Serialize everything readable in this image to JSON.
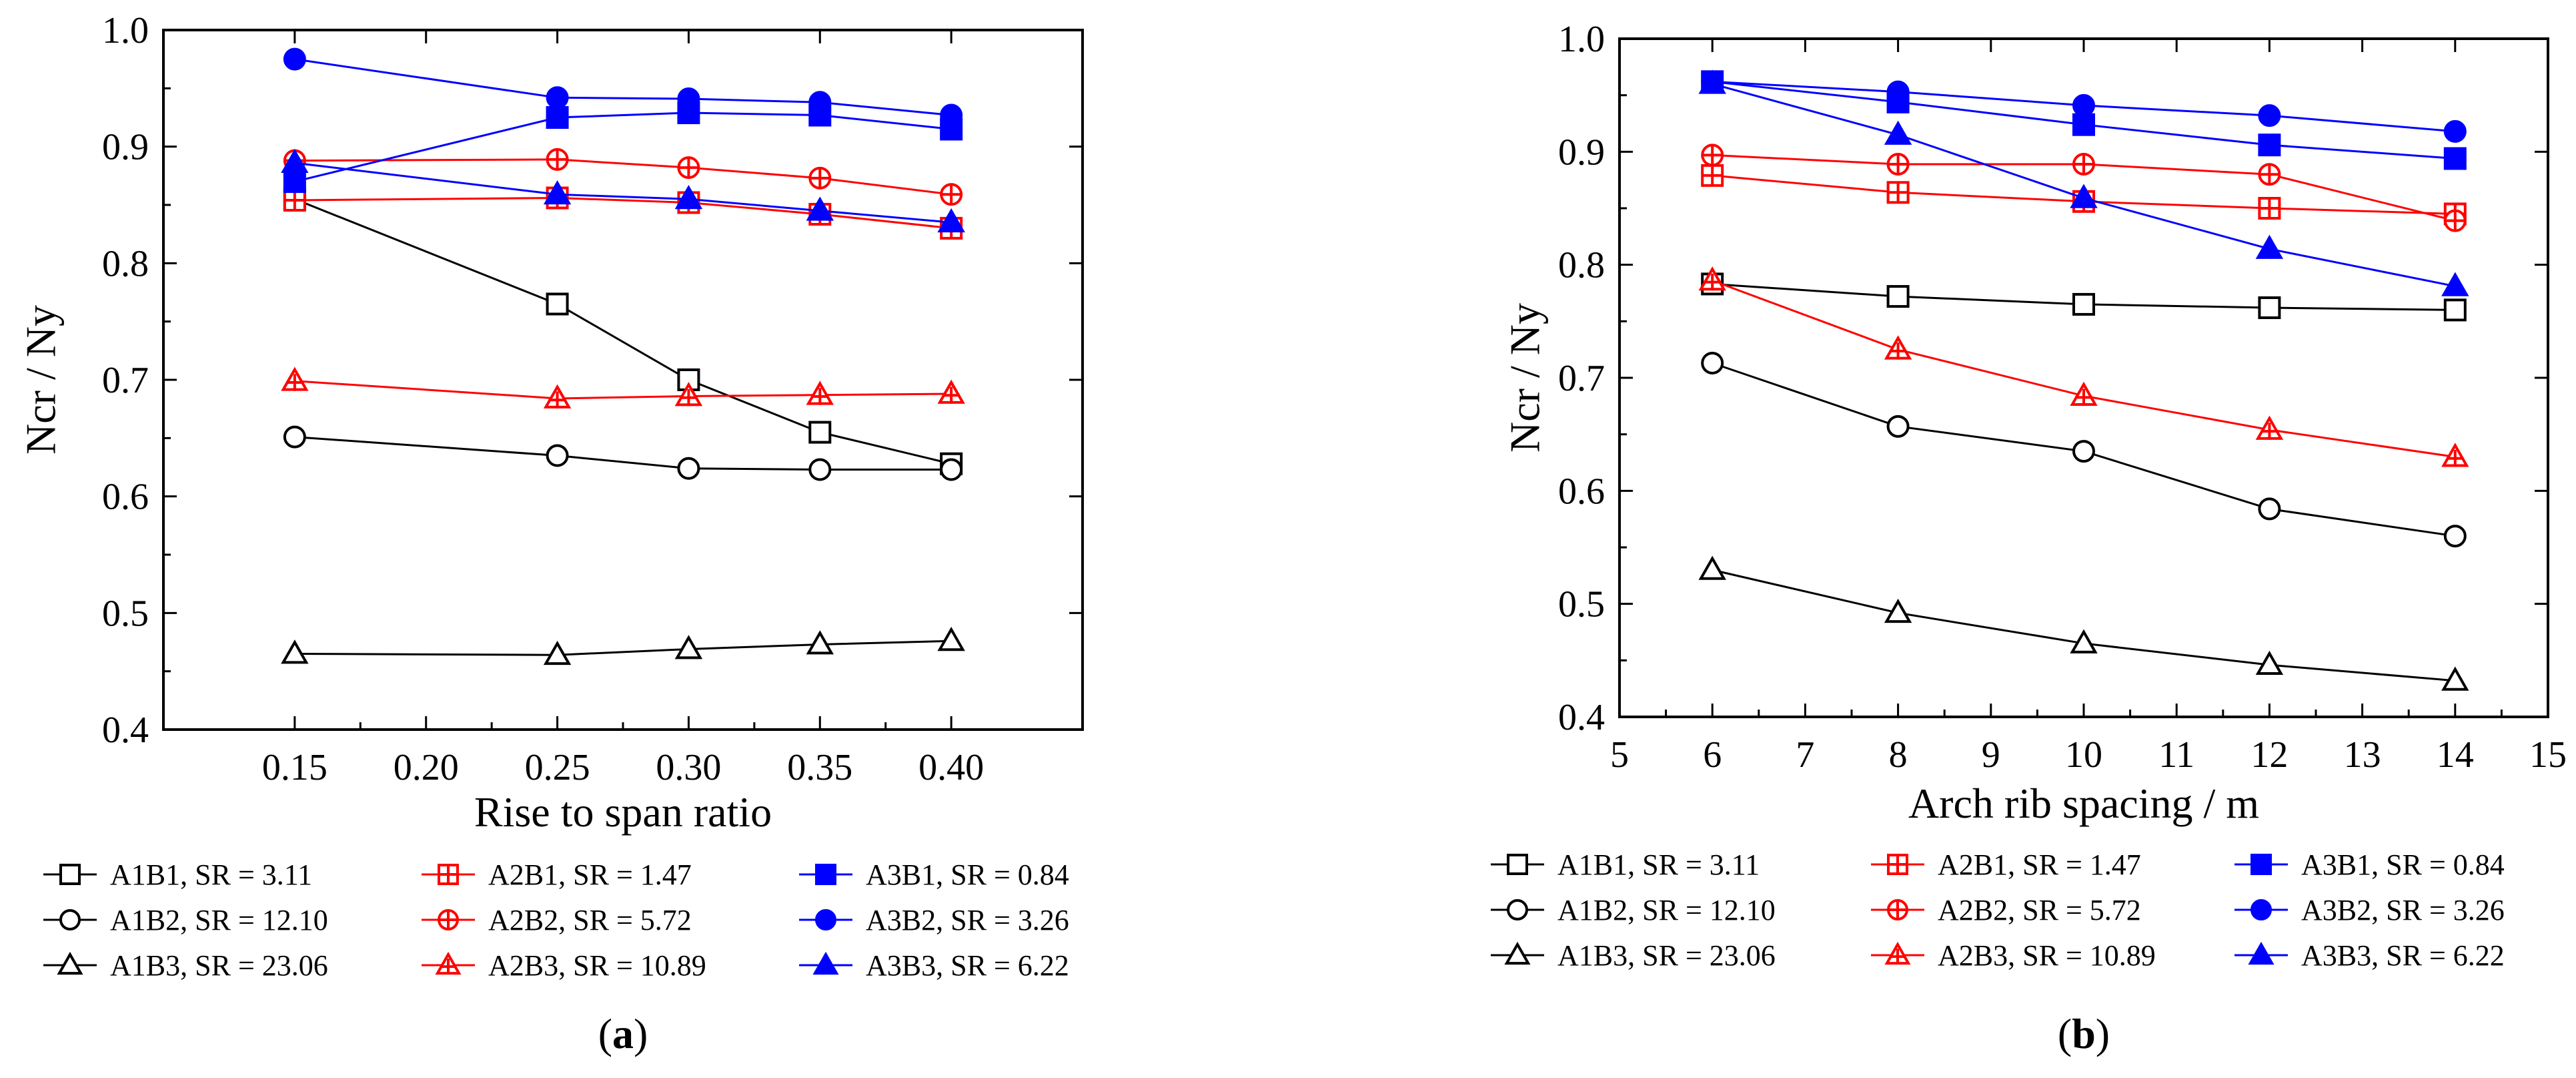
{
  "chart_data": [
    {
      "type": "line",
      "panel_label": "a",
      "xlabel": "Rise to span ratio",
      "ylabel": "Ncr / Ny",
      "xlim": [
        0.1,
        0.45
      ],
      "ylim": [
        0.4,
        1.0
      ],
      "xticks": [
        "0.15",
        "0.20",
        "0.25",
        "0.30",
        "0.35",
        "0.40"
      ],
      "yticks": [
        "0.4",
        "0.5",
        "0.6",
        "0.7",
        "0.8",
        "0.9",
        "1.0"
      ],
      "x": [
        0.15,
        0.25,
        0.3,
        0.35,
        0.4
      ],
      "series": [
        {
          "name": "A1B1, SR = 3.11",
          "color": "#000000",
          "marker": "square",
          "filled": false,
          "values": [
            0.855,
            0.765,
            0.7,
            0.655,
            0.628
          ]
        },
        {
          "name": "A1B2, SR = 12.10",
          "color": "#000000",
          "marker": "circle",
          "filled": false,
          "values": [
            0.651,
            0.635,
            0.624,
            0.623,
            0.623
          ]
        },
        {
          "name": "A1B3, SR = 23.06",
          "color": "#000000",
          "marker": "triangle",
          "filled": false,
          "values": [
            0.465,
            0.464,
            0.469,
            0.473,
            0.476
          ]
        },
        {
          "name": "A2B1, SR = 1.47",
          "color": "#ff0000",
          "marker": "square-cross",
          "filled": false,
          "values": [
            0.854,
            0.856,
            0.852,
            0.842,
            0.83
          ]
        },
        {
          "name": "A2B2, SR = 5.72",
          "color": "#ff0000",
          "marker": "circle-cross",
          "filled": false,
          "values": [
            0.888,
            0.889,
            0.882,
            0.873,
            0.859
          ]
        },
        {
          "name": "A2B3, SR = 10.89",
          "color": "#ff0000",
          "marker": "triangle-cross",
          "filled": false,
          "values": [
            0.699,
            0.684,
            0.686,
            0.687,
            0.688
          ]
        },
        {
          "name": "A3B1, SR = 0.84",
          "color": "#0000ff",
          "marker": "square",
          "filled": true,
          "values": [
            0.87,
            0.925,
            0.929,
            0.927,
            0.915
          ]
        },
        {
          "name": "A3B2, SR = 3.26",
          "color": "#0000ff",
          "marker": "circle",
          "filled": true,
          "values": [
            0.975,
            0.942,
            0.941,
            0.938,
            0.927
          ]
        },
        {
          "name": "A3B3, SR = 6.22",
          "color": "#0000ff",
          "marker": "triangle",
          "filled": true,
          "values": [
            0.886,
            0.859,
            0.855,
            0.845,
            0.835
          ]
        }
      ]
    },
    {
      "type": "line",
      "panel_label": "b",
      "xlabel": "Arch rib spacing / m",
      "ylabel": "Ncr / Ny",
      "xlim": [
        5,
        15
      ],
      "ylim": [
        0.4,
        1.0
      ],
      "xticks": [
        "5",
        "6",
        "7",
        "8",
        "9",
        "10",
        "11",
        "12",
        "13",
        "14",
        "15"
      ],
      "yticks": [
        "0.4",
        "0.5",
        "0.6",
        "0.7",
        "0.8",
        "0.9",
        "1.0"
      ],
      "x": [
        6,
        8,
        10,
        12,
        14
      ],
      "series": [
        {
          "name": "A1B1, SR = 3.11",
          "color": "#000000",
          "marker": "square",
          "filled": false,
          "values": [
            0.783,
            0.772,
            0.765,
            0.762,
            0.76
          ]
        },
        {
          "name": "A1B2, SR = 12.10",
          "color": "#000000",
          "marker": "circle",
          "filled": false,
          "values": [
            0.713,
            0.657,
            0.635,
            0.584,
            0.56
          ]
        },
        {
          "name": "A1B3, SR = 23.06",
          "color": "#000000",
          "marker": "triangle",
          "filled": false,
          "values": [
            0.53,
            0.492,
            0.465,
            0.446,
            0.432
          ]
        },
        {
          "name": "A2B1, SR = 1.47",
          "color": "#ff0000",
          "marker": "square-cross",
          "filled": false,
          "values": [
            0.879,
            0.864,
            0.856,
            0.85,
            0.845
          ]
        },
        {
          "name": "A2B2, SR = 5.72",
          "color": "#ff0000",
          "marker": "circle-cross",
          "filled": false,
          "values": [
            0.897,
            0.889,
            0.889,
            0.88,
            0.839
          ]
        },
        {
          "name": "A2B3, SR = 10.89",
          "color": "#ff0000",
          "marker": "triangle-cross",
          "filled": false,
          "values": [
            0.786,
            0.725,
            0.684,
            0.654,
            0.63
          ]
        },
        {
          "name": "A3B1, SR = 0.84",
          "color": "#0000ff",
          "marker": "square",
          "filled": true,
          "values": [
            0.962,
            0.944,
            0.924,
            0.906,
            0.894
          ]
        },
        {
          "name": "A3B2, SR = 3.26",
          "color": "#0000ff",
          "marker": "circle",
          "filled": true,
          "values": [
            0.962,
            0.953,
            0.941,
            0.932,
            0.918
          ]
        },
        {
          "name": "A3B3, SR = 6.22",
          "color": "#0000ff",
          "marker": "triangle",
          "filled": true,
          "values": [
            0.96,
            0.915,
            0.859,
            0.814,
            0.781
          ]
        }
      ]
    }
  ]
}
